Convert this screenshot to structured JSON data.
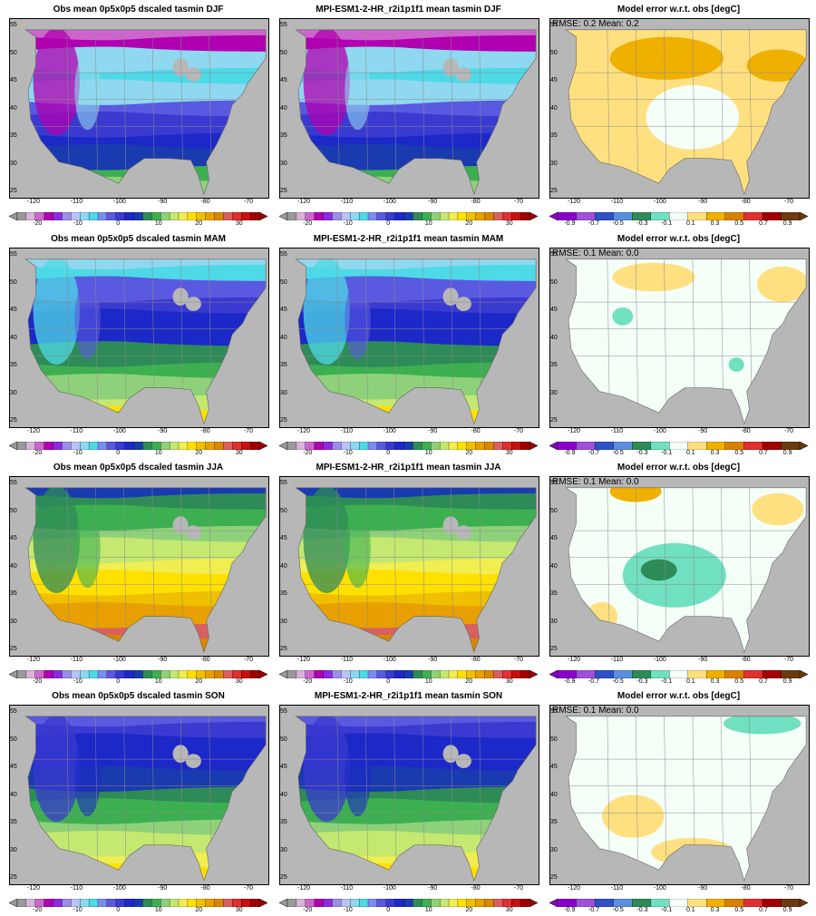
{
  "figure": {
    "rows": [
      {
        "season": "DJF",
        "panels": [
          {
            "kind": "obs",
            "title": "Obs mean 0p5x0p5 dscaled tasmin DJF"
          },
          {
            "kind": "model",
            "title": "MPI-ESM1-2-HR_r2i1p1f1 mean tasmin DJF"
          },
          {
            "kind": "error",
            "title": "Model error w.r.t. obs [degC]",
            "stats": "RMSE: 0.2  Mean: 0.2"
          }
        ]
      },
      {
        "season": "MAM",
        "panels": [
          {
            "kind": "obs",
            "title": "Obs mean 0p5x0p5 dscaled tasmin MAM"
          },
          {
            "kind": "model",
            "title": "MPI-ESM1-2-HR_r2i1p1f1 mean tasmin MAM"
          },
          {
            "kind": "error",
            "title": "Model error w.r.t. obs [degC]",
            "stats": "RMSE: 0.1  Mean: 0.0"
          }
        ]
      },
      {
        "season": "JJA",
        "panels": [
          {
            "kind": "obs",
            "title": "Obs mean 0p5x0p5 dscaled tasmin JJA"
          },
          {
            "kind": "model",
            "title": "MPI-ESM1-2-HR_r2i1p1f1 mean tasmin JJA"
          },
          {
            "kind": "error",
            "title": "Model error w.r.t. obs [degC]",
            "stats": "RMSE: 0.1  Mean: 0.0"
          }
        ]
      },
      {
        "season": "SON",
        "panels": [
          {
            "kind": "obs",
            "title": "Obs mean 0p5x0p5 dscaled tasmin SON"
          },
          {
            "kind": "model",
            "title": "MPI-ESM1-2-HR_r2i1p1f1 mean tasmin SON"
          },
          {
            "kind": "error",
            "title": "Model error w.r.t. obs [degC]",
            "stats": "RMSE: 0.1  Mean: 0.0"
          }
        ]
      }
    ],
    "lon_ticks": [
      "-120",
      "-110",
      "-100",
      "-90",
      "-80",
      "-70"
    ],
    "lat_ticks": [
      "55",
      "50",
      "45",
      "40",
      "35",
      "30",
      "25"
    ],
    "lon_range": [
      -126,
      -66
    ],
    "lat_range": [
      24,
      56
    ],
    "temp_colorbar": {
      "labels": [
        "-20",
        "-10",
        "0",
        "10",
        "20",
        "30"
      ],
      "colors": [
        "#9a9a9a",
        "#d9b3d9",
        "#cc66cc",
        "#b000b0",
        "#8a2be2",
        "#9b8de8",
        "#b8c4f5",
        "#8fd8ef",
        "#4dd9e6",
        "#7a8cef",
        "#5a5ae0",
        "#3a3ad0",
        "#1c28c8",
        "#1a3ab0",
        "#2e8b57",
        "#3cb050",
        "#8fd17a",
        "#c5e870",
        "#f0ee50",
        "#ffe100",
        "#f0c000",
        "#e8a000",
        "#d88800",
        "#d86060",
        "#e03030",
        "#c81010",
        "#a00000"
      ]
    },
    "error_colorbar": {
      "labels": [
        "-0.9",
        "-0.7",
        "-0.5",
        "-0.3",
        "-0.1",
        "0.1",
        "0.3",
        "0.5",
        "0.7",
        "0.9"
      ],
      "colors": [
        "#8a00c8",
        "#a050d8",
        "#3050c8",
        "#5a8fe0",
        "#2e8b57",
        "#70e0c0",
        "#f4fff8",
        "#ffe080",
        "#f0b000",
        "#d88000",
        "#e03030",
        "#a00000",
        "#6b3a10"
      ]
    },
    "palette": {
      "land_gray": "#b7b7b7",
      "border": "#8a8a8a"
    }
  }
}
